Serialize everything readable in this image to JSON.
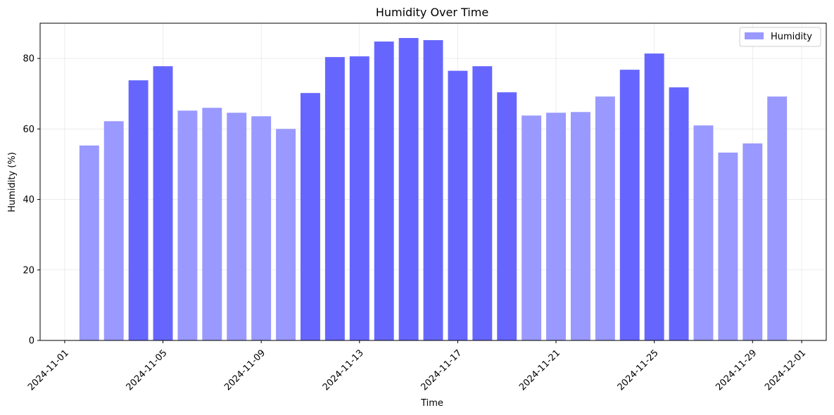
{
  "chart_data": {
    "type": "bar",
    "title": "Humidity Over Time",
    "xlabel": "Time",
    "ylabel": "Humidity (%)",
    "ylim": [
      0,
      90
    ],
    "xlim": [
      "2024-10-31",
      "2024-12-02"
    ],
    "grid": true,
    "legend_position": "top-right",
    "series": [
      {
        "name": "Humidity",
        "color": "#6666ff",
        "highlight_color": "#6666ff",
        "normal_color": "#9999ff",
        "x": [
          "2024-11-02",
          "2024-11-03",
          "2024-11-04",
          "2024-11-05",
          "2024-11-06",
          "2024-11-07",
          "2024-11-08",
          "2024-11-09",
          "2024-11-10",
          "2024-11-11",
          "2024-11-12",
          "2024-11-13",
          "2024-11-14",
          "2024-11-15",
          "2024-11-16",
          "2024-11-17",
          "2024-11-18",
          "2024-11-19",
          "2024-11-20",
          "2024-11-21",
          "2024-11-22",
          "2024-11-23",
          "2024-11-24",
          "2024-11-25",
          "2024-11-26",
          "2024-11-27",
          "2024-11-28",
          "2024-11-29",
          "2024-11-30"
        ],
        "values": [
          55.3,
          62.2,
          73.8,
          77.8,
          65.2,
          66.0,
          64.6,
          63.6,
          60.0,
          70.2,
          80.4,
          80.6,
          84.8,
          85.8,
          85.2,
          76.5,
          77.8,
          70.4,
          63.8,
          64.6,
          64.8,
          69.2,
          76.8,
          81.4,
          71.8,
          61.0,
          53.3,
          55.9,
          69.2
        ],
        "highlighted": [
          false,
          false,
          true,
          true,
          false,
          false,
          false,
          false,
          false,
          true,
          true,
          true,
          true,
          true,
          true,
          true,
          true,
          true,
          false,
          false,
          false,
          false,
          true,
          true,
          true,
          false,
          false,
          false,
          false
        ]
      }
    ],
    "x_ticks": [
      "2024-11-01",
      "2024-11-05",
      "2024-11-09",
      "2024-11-13",
      "2024-11-17",
      "2024-11-21",
      "2024-11-25",
      "2024-11-29",
      "2024-12-01"
    ],
    "y_ticks": [
      0,
      20,
      40,
      60,
      80
    ]
  }
}
